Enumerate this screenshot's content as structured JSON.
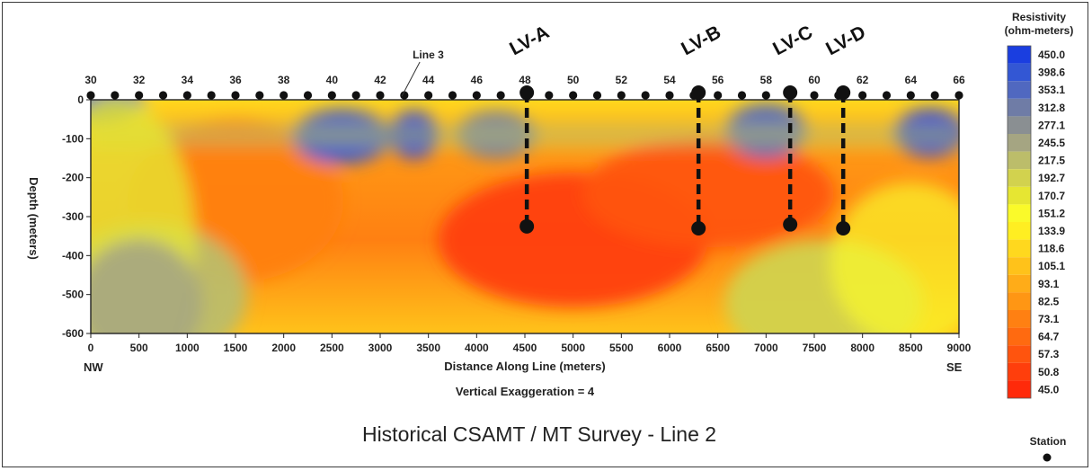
{
  "chart_data": {
    "type": "heatmap",
    "subtitle": "Vertical Exaggeration = 4",
    "caption": "Historical CSAMT / MT Survey - Line 2",
    "xlabel": "Distance Along Line (meters)",
    "ylabel": "Depth (meters)",
    "xlim": [
      0,
      9000
    ],
    "ylim": [
      -600,
      0
    ],
    "x_ticks": [
      "0",
      "500",
      "1000",
      "1500",
      "2000",
      "2500",
      "3000",
      "3500",
      "4000",
      "4500",
      "5000",
      "5500",
      "6000",
      "6500",
      "7000",
      "7500",
      "8000",
      "8500",
      "9000"
    ],
    "y_ticks": [
      "0",
      "-100",
      "-200",
      "-300",
      "-400",
      "-500",
      "-600"
    ],
    "x_end_labels": {
      "left": "NW",
      "right": "SE"
    },
    "stations": {
      "first": 30,
      "last": 66,
      "labels": [
        "30",
        "32",
        "34",
        "36",
        "38",
        "40",
        "42",
        "44",
        "46",
        "48",
        "50",
        "52",
        "54",
        "56",
        "58",
        "60",
        "62",
        "64",
        "66"
      ]
    },
    "line_crossing": {
      "label": "Line 3",
      "distance": 3150
    },
    "drill_holes": [
      {
        "label": "LV-A",
        "distance": 4520,
        "depth_top": 0,
        "depth_bottom": -325
      },
      {
        "label": "LV-B",
        "distance": 6300,
        "depth_top": 0,
        "depth_bottom": -330
      },
      {
        "label": "LV-C",
        "distance": 7250,
        "depth_top": 0,
        "depth_bottom": -320
      },
      {
        "label": "LV-D",
        "distance": 7800,
        "depth_top": 0,
        "depth_bottom": -330
      }
    ],
    "legend": {
      "title_line1": "Resistivity",
      "title_line2": "(ohm-meters)",
      "levels": [
        "450.0",
        "398.6",
        "353.1",
        "312.8",
        "277.1",
        "245.5",
        "217.5",
        "192.7",
        "170.7",
        "151.2",
        "133.9",
        "118.6",
        "105.1",
        "93.1",
        "82.5",
        "73.1",
        "64.7",
        "57.3",
        "50.8",
        "45.0"
      ],
      "colors": [
        "#1a3ee0",
        "#3357d4",
        "#5068c0",
        "#6f7ca6",
        "#8a8f92",
        "#a5a582",
        "#bcbd6a",
        "#d2d24e",
        "#e6e632",
        "#fafa2a",
        "#ffee22",
        "#ffd81e",
        "#ffc21a",
        "#ffac18",
        "#ff9614",
        "#ff8012",
        "#ff6a10",
        "#ff540e",
        "#ff3e0c",
        "#ff2a0a"
      ],
      "station_label": "Station"
    },
    "anomalies": [
      {
        "x": 0,
        "y": -5,
        "level": "353.1"
      },
      {
        "x": 1500,
        "y": -260,
        "level": "73.1"
      },
      {
        "x": 2600,
        "y": -95,
        "level": "398.6"
      },
      {
        "x": 3350,
        "y": -90,
        "level": "450.0"
      },
      {
        "x": 4200,
        "y": -90,
        "level": "312.8"
      },
      {
        "x": 5000,
        "y": -360,
        "level": "50.8"
      },
      {
        "x": 6400,
        "y": -240,
        "level": "57.3"
      },
      {
        "x": 7000,
        "y": -80,
        "level": "353.1"
      },
      {
        "x": 8700,
        "y": -85,
        "level": "450.0"
      },
      {
        "x": 600,
        "y": -500,
        "level": "217.5"
      },
      {
        "x": 7600,
        "y": -520,
        "level": "192.7"
      }
    ]
  }
}
